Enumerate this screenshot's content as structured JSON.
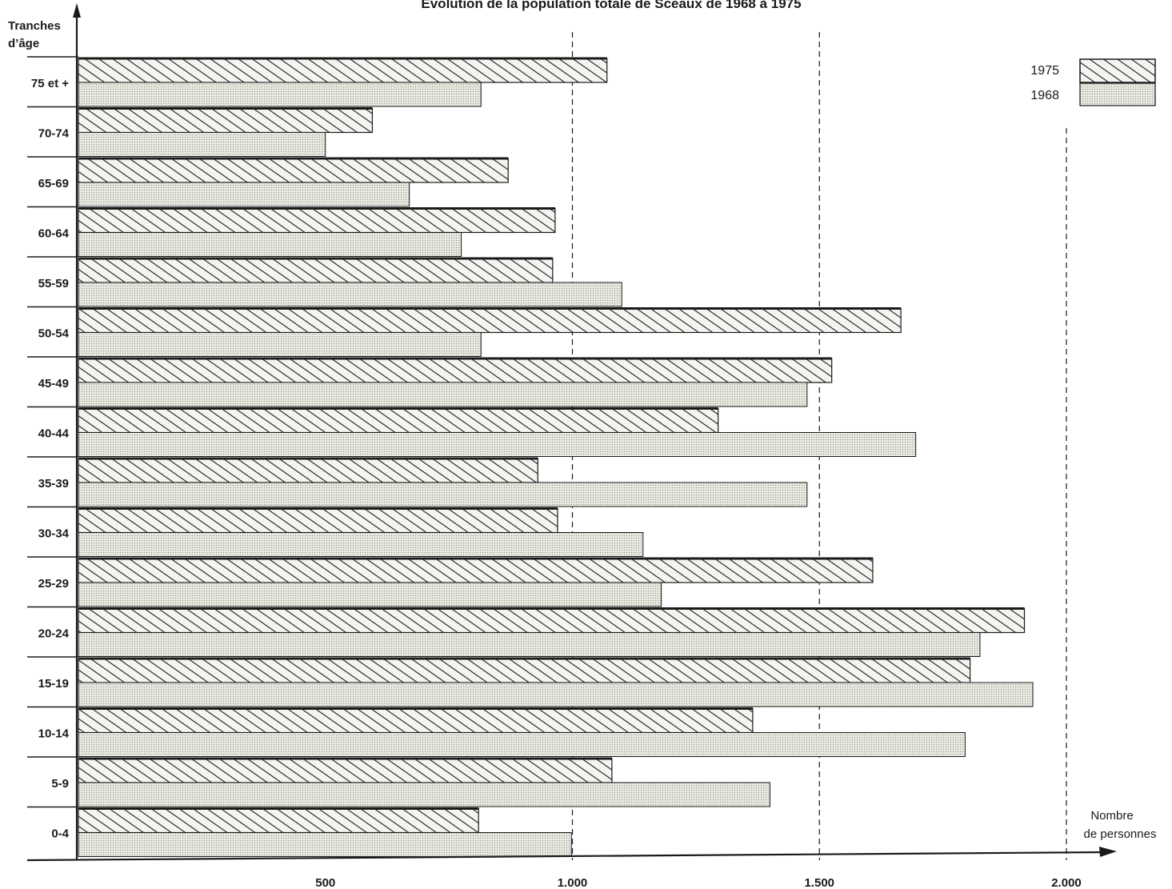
{
  "chart_data": {
    "type": "bar",
    "orientation": "horizontal",
    "title": "Evolution de la population totale de Sceaux de 1968 à 1975",
    "ylabel_line1": "Tranches",
    "ylabel_line2": "d’âge",
    "xlabel_line1": "Nombre",
    "xlabel_line2": "de personnes",
    "categories": [
      "75 et +",
      "70-74",
      "65-69",
      "60-64",
      "55-59",
      "50-54",
      "45-49",
      "40-44",
      "35-39",
      "30-34",
      "25-29",
      "20-24",
      "15-19",
      "10-14",
      "5-9",
      "0-4"
    ],
    "series": [
      {
        "name": "1975",
        "values": [
          1070,
          595,
          870,
          965,
          960,
          1665,
          1525,
          1295,
          930,
          970,
          1608,
          1915,
          1805,
          1365,
          1080,
          810
        ]
      },
      {
        "name": "1968",
        "values": [
          815,
          500,
          670,
          775,
          1100,
          815,
          1475,
          1695,
          1475,
          1143,
          1180,
          1825,
          1932,
          1795,
          1400,
          998
        ]
      }
    ],
    "xticks": [
      "500",
      "1.000",
      "1.500",
      "2.000"
    ],
    "xtick_values": [
      500,
      1000,
      1500,
      2000
    ],
    "xlim": [
      0,
      2000
    ],
    "grid_x": [
      1000,
      1500,
      2000
    ],
    "legend_position": "top-right",
    "colors": {
      "ink": "#1a1a1a",
      "fill_1968": "#e2e2da",
      "fill_1975": "#f4f4f0"
    }
  }
}
